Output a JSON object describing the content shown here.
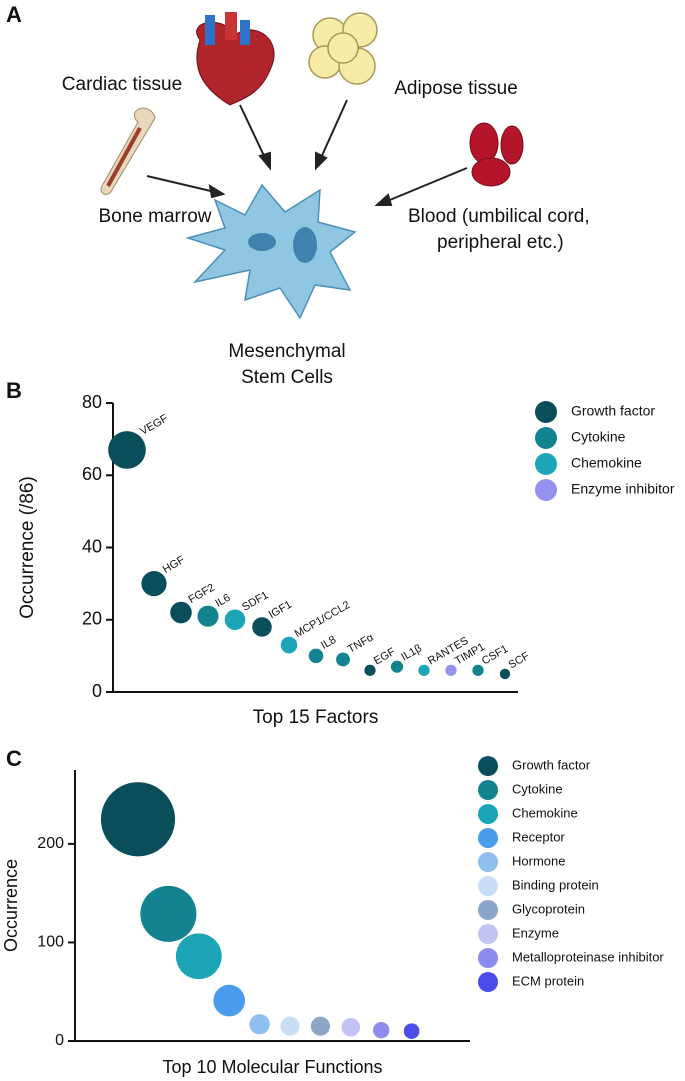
{
  "panels": {
    "a": {
      "label": "A",
      "sources": [
        "Cardiac tissue",
        "Adipose tissue",
        "Bone marrow"
      ],
      "blood": [
        "Blood (umbilical cord,",
        "peripheral etc.)"
      ],
      "target": [
        "Mesenchymal",
        "Stem Cells"
      ]
    },
    "b": "B",
    "c": "C"
  },
  "chart_data": [
    {
      "type": "bubble",
      "xlabel": "Top 15 Factors",
      "ylabel": "Occurrence (/86)",
      "ylim": [
        0,
        80
      ],
      "yticks": [
        0,
        20,
        40,
        60,
        80
      ],
      "categories": [
        "VEGF",
        "HGF",
        "FGF2",
        "IL6",
        "SDF1",
        "IGF1",
        "MCP1/CCL2",
        "IL8",
        "TNFα",
        "EGF",
        "IL1β",
        "RANTES",
        "TIMP1",
        "CSF1",
        "SCF"
      ],
      "series": [
        {
          "name": "Growth factor",
          "color": "#0b4e5b",
          "values": [
            67,
            30,
            22,
            null,
            null,
            18,
            null,
            null,
            null,
            6,
            null,
            null,
            null,
            null,
            5
          ]
        },
        {
          "name": "Cytokine",
          "color": "#138390",
          "values": [
            null,
            null,
            null,
            21,
            null,
            null,
            null,
            10,
            9,
            null,
            7,
            null,
            null,
            6,
            null
          ]
        },
        {
          "name": "Chemokine",
          "color": "#1ba5b6",
          "values": [
            null,
            null,
            null,
            null,
            20,
            null,
            13,
            null,
            null,
            null,
            null,
            6,
            null,
            null,
            null
          ]
        },
        {
          "name": "Enzyme inhibitor",
          "color": "#9591ee",
          "values": [
            null,
            null,
            null,
            null,
            null,
            null,
            null,
            null,
            null,
            null,
            null,
            null,
            6,
            null,
            null
          ]
        }
      ]
    },
    {
      "type": "bubble",
      "xlabel": "Top 10 Molecular Functions",
      "ylabel": "Occurrence",
      "ylim": [
        0,
        275
      ],
      "yticks": [
        0,
        100,
        200
      ],
      "series": [
        {
          "name": "Growth factor",
          "color": "#0b4e5b",
          "values": [
            225
          ]
        },
        {
          "name": "Cytokine",
          "color": "#138390",
          "values": [
            129
          ]
        },
        {
          "name": "Chemokine",
          "color": "#1ba5b6",
          "values": [
            86
          ]
        },
        {
          "name": "Receptor",
          "color": "#4a9cec",
          "values": [
            41
          ]
        },
        {
          "name": "Hormone",
          "color": "#8fc0f0",
          "values": [
            17
          ]
        },
        {
          "name": "Binding protein",
          "color": "#c9def5",
          "values": [
            15
          ]
        },
        {
          "name": "Glycoprotein",
          "color": "#8ba6c8",
          "values": [
            15
          ]
        },
        {
          "name": "Enzyme",
          "color": "#c3c3f3",
          "values": [
            14
          ]
        },
        {
          "name": "Metalloproteinase inhibitor",
          "color": "#8d8cee",
          "values": [
            11
          ]
        },
        {
          "name": "ECM protein",
          "color": "#4c4ceb",
          "values": [
            10
          ]
        }
      ]
    }
  ]
}
